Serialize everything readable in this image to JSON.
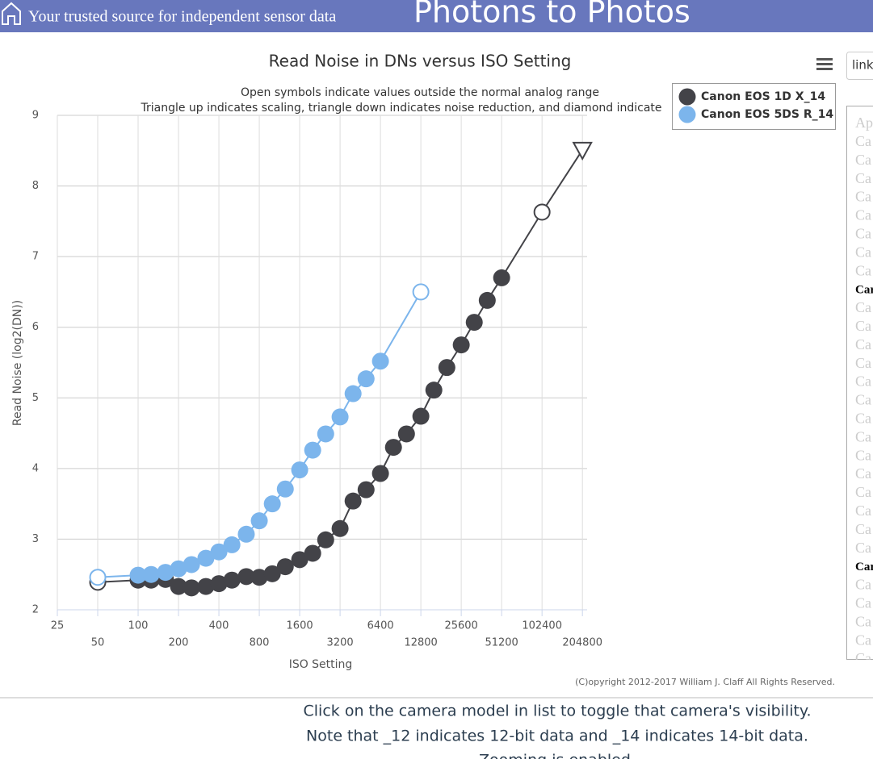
{
  "header": {
    "tagline": "Your trusted source for independent sensor data",
    "site": "Photons to Photos"
  },
  "chart_data": {
    "type": "line",
    "title": "Read Noise in DNs versus ISO Setting",
    "subtitle": [
      "Open symbols indicate values outside the normal analog range",
      "Triangle up indicates scaling, triangle down indicates noise reduction, and diamond indicate"
    ],
    "x_label": "ISO Setting",
    "y_label": "Read Noise (log2(DN))",
    "x_scale": "log2",
    "xlim": [
      25,
      222000
    ],
    "xticks": [
      25,
      50,
      100,
      200,
      400,
      800,
      1600,
      3200,
      6400,
      12800,
      25600,
      51200,
      102400,
      204800
    ],
    "ylim": [
      2,
      9
    ],
    "yticks": [
      2,
      3,
      4,
      5,
      6,
      7,
      8,
      9
    ],
    "grid": true,
    "legend": "top-right",
    "series": [
      {
        "name": "Canon EOS 1D X_14",
        "color": "#434348",
        "x": [
          50,
          100,
          125,
          160,
          200,
          250,
          320,
          400,
          500,
          640,
          800,
          1000,
          1250,
          1600,
          2000,
          2500,
          3200,
          4000,
          5000,
          6400,
          8000,
          10000,
          12800,
          16000,
          20000,
          25600,
          32000,
          40000,
          51200,
          102400,
          204800
        ],
        "values": [
          2.39,
          2.42,
          2.42,
          2.43,
          2.33,
          2.31,
          2.33,
          2.37,
          2.42,
          2.47,
          2.46,
          2.51,
          2.61,
          2.71,
          2.8,
          2.99,
          3.15,
          3.54,
          3.7,
          3.93,
          4.3,
          4.49,
          4.74,
          5.11,
          5.43,
          5.75,
          6.07,
          6.38,
          6.7,
          7.63,
          8.51
        ],
        "symbols": [
          "open",
          "filled",
          "filled",
          "filled",
          "filled",
          "filled",
          "filled",
          "filled",
          "filled",
          "filled",
          "filled",
          "filled",
          "filled",
          "filled",
          "filled",
          "filled",
          "filled",
          "filled",
          "filled",
          "filled",
          "filled",
          "filled",
          "filled",
          "filled",
          "filled",
          "filled",
          "filled",
          "filled",
          "filled",
          "open",
          "triangle-down"
        ]
      },
      {
        "name": "Canon EOS 5DS R_14",
        "color": "#7cb5ec",
        "x": [
          50,
          100,
          125,
          160,
          200,
          250,
          320,
          400,
          500,
          640,
          800,
          1000,
          1250,
          1600,
          2000,
          2500,
          3200,
          4000,
          5000,
          6400,
          12800
        ],
        "values": [
          2.46,
          2.49,
          2.5,
          2.53,
          2.58,
          2.64,
          2.73,
          2.82,
          2.92,
          3.07,
          3.26,
          3.5,
          3.71,
          3.98,
          4.26,
          4.49,
          4.73,
          5.06,
          5.27,
          5.52,
          6.5
        ],
        "symbols": [
          "open",
          "filled",
          "filled",
          "filled",
          "filled",
          "filled",
          "filled",
          "filled",
          "filled",
          "filled",
          "filled",
          "filled",
          "filled",
          "filled",
          "filled",
          "filled",
          "filled",
          "filled",
          "filled",
          "filled",
          "open"
        ]
      }
    ],
    "copyright": "(C)opyright 2012-2017 William J. Claff All Rights Reserved."
  },
  "sidebar": {
    "search": "link",
    "items": [
      {
        "text": "Ap",
        "bold": false
      },
      {
        "text": "Ca",
        "bold": false
      },
      {
        "text": "Ca",
        "bold": false
      },
      {
        "text": "Ca",
        "bold": false
      },
      {
        "text": "Ca",
        "bold": false
      },
      {
        "text": "Ca",
        "bold": false
      },
      {
        "text": "Ca",
        "bold": false
      },
      {
        "text": "Ca",
        "bold": false
      },
      {
        "text": "Ca",
        "bold": false
      },
      {
        "text": "Car",
        "bold": true
      },
      {
        "text": "Ca",
        "bold": false
      },
      {
        "text": "Ca",
        "bold": false
      },
      {
        "text": "Ca",
        "bold": false
      },
      {
        "text": "Ca",
        "bold": false
      },
      {
        "text": "Ca",
        "bold": false
      },
      {
        "text": "Ca",
        "bold": false
      },
      {
        "text": "Ca",
        "bold": false
      },
      {
        "text": "Ca",
        "bold": false
      },
      {
        "text": "Ca",
        "bold": false
      },
      {
        "text": "Ca",
        "bold": false
      },
      {
        "text": "Ca",
        "bold": false
      },
      {
        "text": "Ca",
        "bold": false
      },
      {
        "text": "Ca",
        "bold": false
      },
      {
        "text": "Ca",
        "bold": false
      },
      {
        "text": "Car",
        "bold": true
      },
      {
        "text": "Ca",
        "bold": false
      },
      {
        "text": "Ca",
        "bold": false
      },
      {
        "text": "Ca",
        "bold": false
      },
      {
        "text": "Ca",
        "bold": false
      },
      {
        "text": "Ca",
        "bold": false
      }
    ]
  },
  "footer": {
    "lines": [
      "Click on the camera model in list to toggle that camera's visibility.",
      "Note that _12 indicates 12-bit data and _14 indicates 14-bit data.",
      "Zooming is enabled."
    ]
  }
}
